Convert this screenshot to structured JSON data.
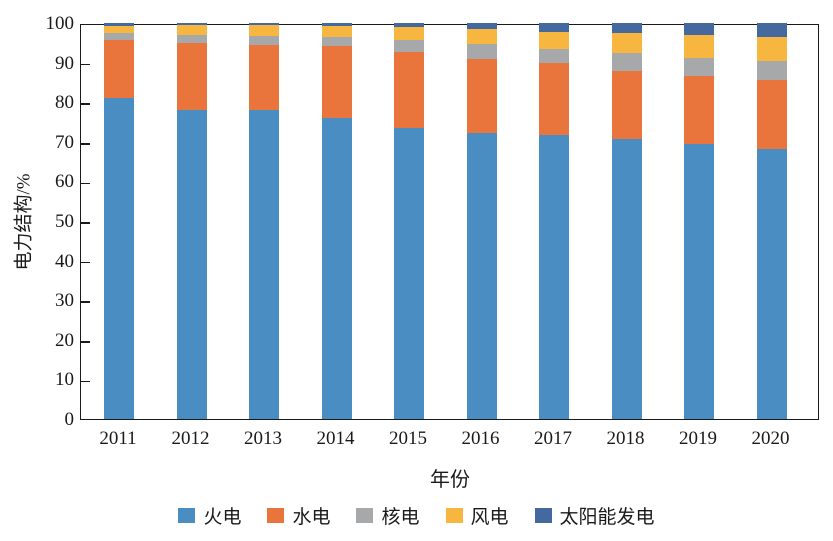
{
  "chart_data": {
    "type": "bar",
    "stacked": true,
    "percent_stacked": true,
    "xlabel": "年份",
    "ylabel": "电力结构/%",
    "ylim": [
      0,
      100
    ],
    "y_ticks": [
      0,
      10,
      20,
      30,
      40,
      50,
      60,
      70,
      80,
      90,
      100
    ],
    "grid": false,
    "legend_position": "bottom",
    "categories": [
      "2011",
      "2012",
      "2013",
      "2014",
      "2015",
      "2016",
      "2017",
      "2018",
      "2019",
      "2020"
    ],
    "series": [
      {
        "name": "火电",
        "color": "#4a8dc3",
        "values": [
          81.0,
          78.0,
          78.1,
          75.9,
          73.5,
          72.1,
          71.8,
          70.7,
          69.5,
          68.3
        ]
      },
      {
        "name": "水电",
        "color": "#e9743c",
        "values": [
          14.8,
          16.9,
          16.3,
          18.2,
          19.2,
          18.9,
          18.0,
          17.3,
          17.1,
          17.2
        ]
      },
      {
        "name": "核电",
        "color": "#a7a8aa",
        "values": [
          1.8,
          2.1,
          2.4,
          2.3,
          3.0,
          3.7,
          3.6,
          4.4,
          4.6,
          4.9
        ]
      },
      {
        "name": "风电",
        "color": "#f7b63f",
        "values": [
          1.6,
          2.4,
          2.8,
          2.9,
          3.4,
          3.9,
          4.4,
          5.0,
          5.7,
          6.1
        ]
      },
      {
        "name": "太阳能发电",
        "color": "#44699f",
        "values": [
          0.8,
          0.6,
          0.4,
          0.7,
          0.9,
          1.4,
          2.2,
          2.6,
          3.1,
          3.5
        ]
      }
    ]
  },
  "style": {
    "axis_color": "#1a1a1a"
  }
}
